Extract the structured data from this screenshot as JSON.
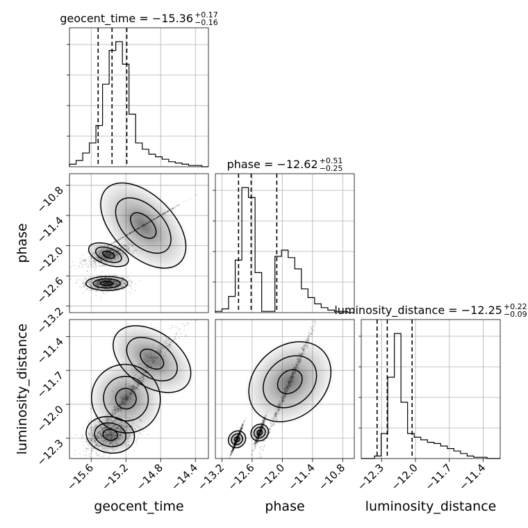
{
  "chart_data": {
    "type": "corner",
    "parameters": [
      "geocent_time",
      "phase",
      "luminosity_distance"
    ],
    "ranges": {
      "geocent_time": [
        -15.85,
        -14.25
      ],
      "phase": [
        -13.33,
        -10.57
      ],
      "luminosity_distance": [
        -12.48,
        -11.25
      ]
    },
    "ticks": {
      "geocent_time": [
        "−15.6",
        "−15.2",
        "−14.8",
        "−14.4"
      ],
      "phase": [
        "−13.2",
        "−12.6",
        "−12.0",
        "−11.4",
        "−10.8"
      ],
      "luminosity_distance": [
        "−12.3",
        "−12.0",
        "−11.7",
        "−11.4"
      ]
    },
    "tick_values": {
      "geocent_time": [
        -15.6,
        -15.2,
        -14.8,
        -14.4
      ],
      "phase": [
        -13.2,
        -12.6,
        -12.0,
        -11.4,
        -10.8
      ],
      "luminosity_distance": [
        -12.3,
        -12.0,
        -11.7,
        -11.4
      ]
    },
    "titles": {
      "geocent_time": {
        "main": "geocent_time = −15.36",
        "upper": "+0.17",
        "lower": "−0.16"
      },
      "phase": {
        "main": "phase = −12.62",
        "upper": "+0.51",
        "lower": "−0.25"
      },
      "luminosity_distance": {
        "main": "luminosity_distance = −12.25",
        "upper": "+0.22",
        "lower": "−0.09"
      }
    },
    "quantiles": {
      "geocent_time": [
        -15.52,
        -15.36,
        -15.19
      ],
      "phase": [
        -12.87,
        -12.62,
        -12.11
      ],
      "luminosity_distance": [
        -12.34,
        -12.25,
        -12.03
      ]
    },
    "histograms": {
      "geocent_time": [
        0.02,
        0.05,
        0.11,
        0.19,
        0.33,
        0.66,
        0.93,
        1.0,
        0.82,
        0.42,
        0.19,
        0.14,
        0.1,
        0.08,
        0.06,
        0.04,
        0.03,
        0.02,
        0.01,
        0.01,
        0.0
      ],
      "phase": [
        0.01,
        0.03,
        0.13,
        0.42,
        1.0,
        0.92,
        0.32,
        0.01,
        0.01,
        0.45,
        0.5,
        0.44,
        0.35,
        0.19,
        0.12,
        0.07,
        0.04,
        0.02,
        0.01,
        0.01,
        0.0
      ],
      "luminosity_distance": [
        0.0,
        0.0,
        0.02,
        0.2,
        0.65,
        1.0,
        0.45,
        0.2,
        0.17,
        0.15,
        0.13,
        0.12,
        0.1,
        0.08,
        0.06,
        0.04,
        0.02,
        0.01,
        0.01,
        0.0,
        0.0
      ]
    },
    "grid": true
  }
}
